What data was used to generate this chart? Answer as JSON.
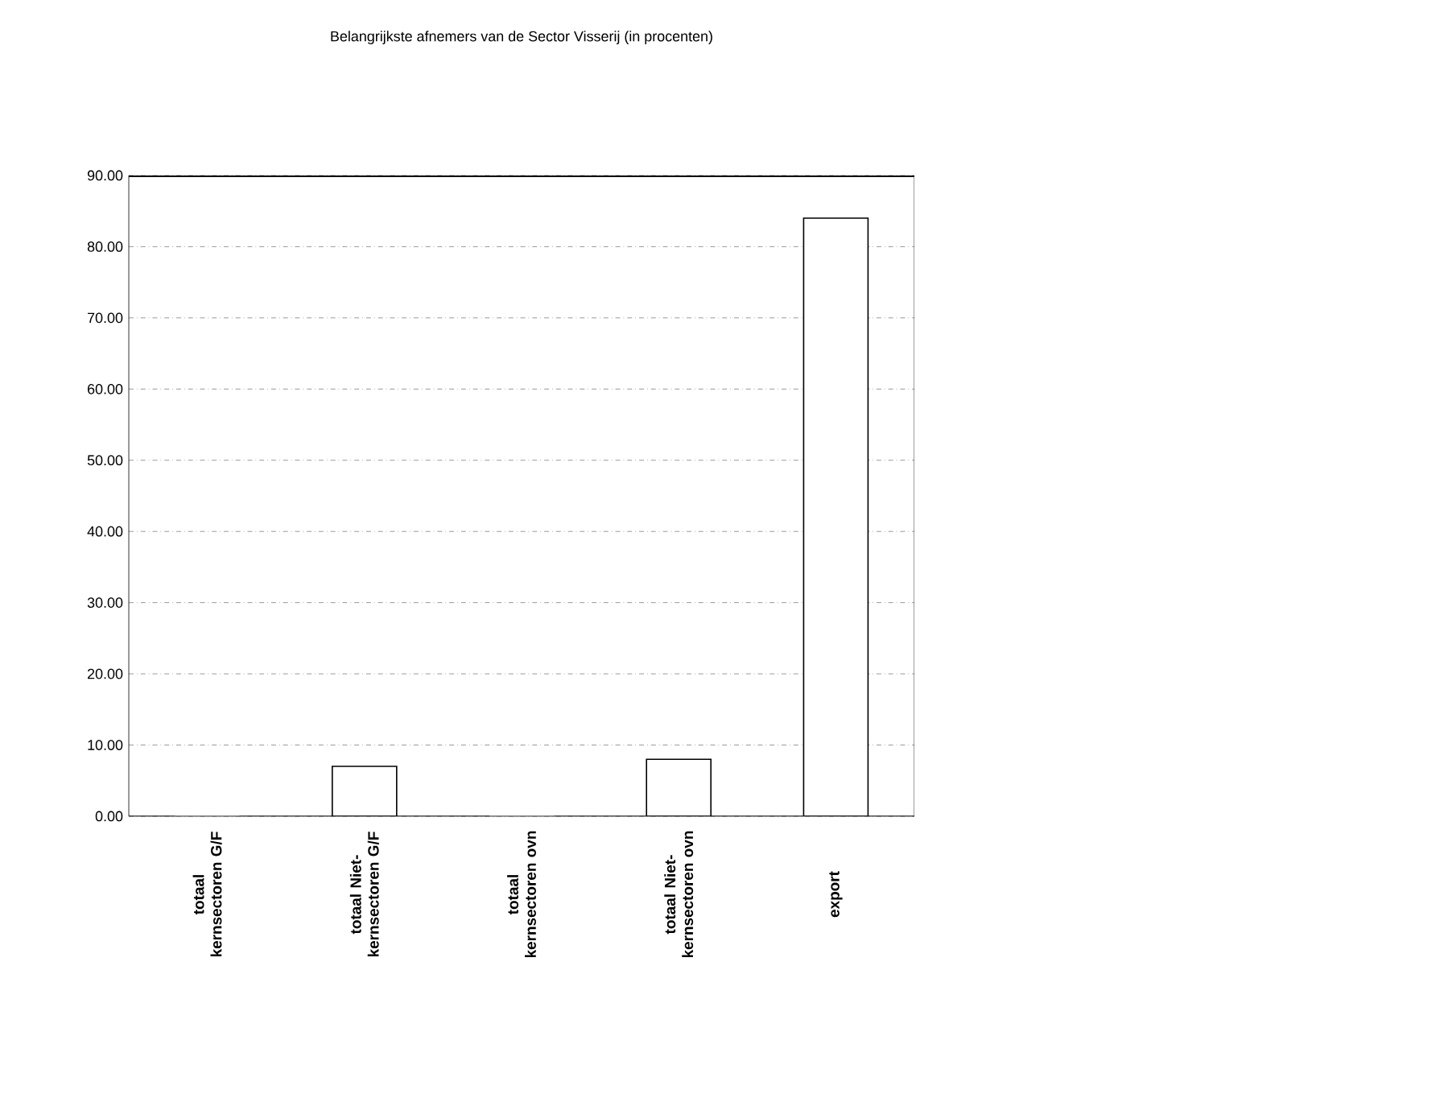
{
  "chart_data": {
    "type": "bar",
    "title": "Belangrijkste afnemers van de Sector Visserij (in procenten)",
    "categories": [
      "totaal kernsectoren G/F",
      "totaal Niet-kernsectoren G/F",
      "totaal kernsectoren ovn",
      "totaal Niet-kernsectoren ovn",
      "export"
    ],
    "values": [
      0,
      7.0,
      0,
      8.0,
      84.0
    ],
    "color": "#ffffff",
    "ylim": [
      0,
      90
    ],
    "yticks": [
      {
        "value": 0,
        "label": "0.00"
      },
      {
        "value": 10,
        "label": "10.00"
      },
      {
        "value": 20,
        "label": "20.00"
      },
      {
        "value": 30,
        "label": "30.00"
      },
      {
        "value": 40,
        "label": "40.00"
      },
      {
        "value": 50,
        "label": "50.00"
      },
      {
        "value": 60,
        "label": "60.00"
      },
      {
        "value": 70,
        "label": "70.00"
      },
      {
        "value": 80,
        "label": "80.00"
      },
      {
        "value": 90,
        "label": "90.00"
      }
    ],
    "grid": "y"
  }
}
